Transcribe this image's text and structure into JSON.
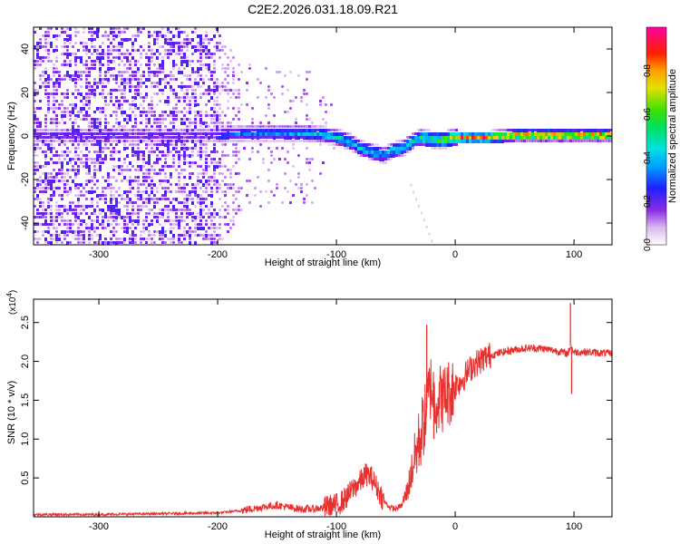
{
  "title": "C2E2.2026.031.18.09.R21",
  "chart_data": [
    {
      "type": "heatmap",
      "name": "spectrogram",
      "xlabel": "Height of straight line (km)",
      "ylabel": "Frequency (Hz)",
      "xlim": [
        -355,
        132
      ],
      "ylim": [
        -50,
        50
      ],
      "xticks": [
        -300,
        -200,
        -100,
        0,
        100
      ],
      "yticks": [
        -40,
        -20,
        0,
        20,
        40
      ],
      "colorbar": {
        "label": "Normalized spectral amplitude",
        "range": [
          0,
          1
        ],
        "ticks": [
          0.0,
          0.2,
          0.4,
          0.6,
          0.8
        ],
        "colormap": "rainbow (white → purple → blue → cyan → green → yellow → red → magenta)"
      },
      "signal_center_hz": [
        [
          -335,
          1
        ],
        [
          -300,
          1
        ],
        [
          -250,
          1
        ],
        [
          -200,
          1
        ],
        [
          -175,
          2
        ],
        [
          -150,
          2
        ],
        [
          -125,
          2
        ],
        [
          -110,
          1
        ],
        [
          -100,
          0
        ],
        [
          -90,
          -2
        ],
        [
          -80,
          -5
        ],
        [
          -70,
          -7
        ],
        [
          -60,
          -8
        ],
        [
          -55,
          -6
        ],
        [
          -45,
          -5
        ],
        [
          -40,
          -3
        ],
        [
          -35,
          -1
        ],
        [
          -30,
          0
        ],
        [
          -20,
          -1
        ],
        [
          -10,
          -1
        ],
        [
          0,
          0
        ],
        [
          20,
          0
        ],
        [
          50,
          1
        ],
        [
          80,
          1
        ],
        [
          100,
          1
        ],
        [
          130,
          1
        ]
      ],
      "noise_extent_hz": [
        [
          -355,
          50
        ],
        [
          -250,
          50
        ],
        [
          -200,
          50
        ],
        [
          -180,
          35
        ],
        [
          -150,
          30
        ],
        [
          -120,
          30
        ],
        [
          -100,
          10
        ],
        [
          -60,
          8
        ],
        [
          -30,
          6
        ],
        [
          0,
          4
        ],
        [
          130,
          3
        ]
      ]
    },
    {
      "type": "line",
      "name": "snr",
      "xlabel": "Height of straight line (km)",
      "ylabel": "SNR (10 * v/v)",
      "y_multiplier": "(x10",
      "y_multiplier_exp": "4",
      "y_multiplier_close": ")",
      "xlim": [
        -355,
        132
      ],
      "ylim": [
        0,
        2.8
      ],
      "xticks": [
        -300,
        -200,
        -100,
        0,
        100
      ],
      "yticks": [
        0.5,
        1.0,
        1.5,
        2.0,
        2.5
      ],
      "yticklabels": [
        "0.5",
        "1.0",
        "1.5",
        "2.0",
        "2.5"
      ],
      "color": "#e8302e",
      "series": [
        {
          "name": "SNR",
          "x": [
            -355,
            -300,
            -250,
            -200,
            -180,
            -165,
            -150,
            -140,
            -130,
            -120,
            -110,
            -100,
            -95,
            -90,
            -85,
            -80,
            -75,
            -70,
            -65,
            -60,
            -55,
            -50,
            -45,
            -40,
            -35,
            -30,
            -25,
            -22,
            -20,
            -18,
            -15,
            -12,
            -10,
            -8,
            -5,
            -2,
            0,
            5,
            10,
            15,
            20,
            25,
            30,
            40,
            50,
            60,
            70,
            80,
            90,
            95,
            97,
            100,
            110,
            120,
            132
          ],
          "y": [
            0.03,
            0.03,
            0.04,
            0.05,
            0.08,
            0.12,
            0.15,
            0.12,
            0.1,
            0.1,
            0.12,
            0.15,
            0.2,
            0.28,
            0.38,
            0.45,
            0.55,
            0.5,
            0.35,
            0.2,
            0.12,
            0.1,
            0.15,
            0.35,
            0.7,
            1.0,
            1.3,
            1.6,
            1.7,
            1.55,
            1.5,
            1.55,
            1.5,
            1.6,
            1.6,
            1.65,
            1.7,
            1.75,
            1.85,
            1.95,
            2.0,
            2.05,
            2.08,
            2.12,
            2.15,
            2.17,
            2.17,
            2.15,
            2.12,
            2.1,
            2.2,
            2.12,
            2.12,
            2.11,
            2.1
          ]
        }
      ],
      "spikes": [
        {
          "x": -24,
          "y": 2.47
        },
        {
          "x": -18,
          "y": 1.0
        },
        {
          "x": 97,
          "y": 2.75
        },
        {
          "x": 98,
          "y": 1.58
        }
      ]
    }
  ]
}
